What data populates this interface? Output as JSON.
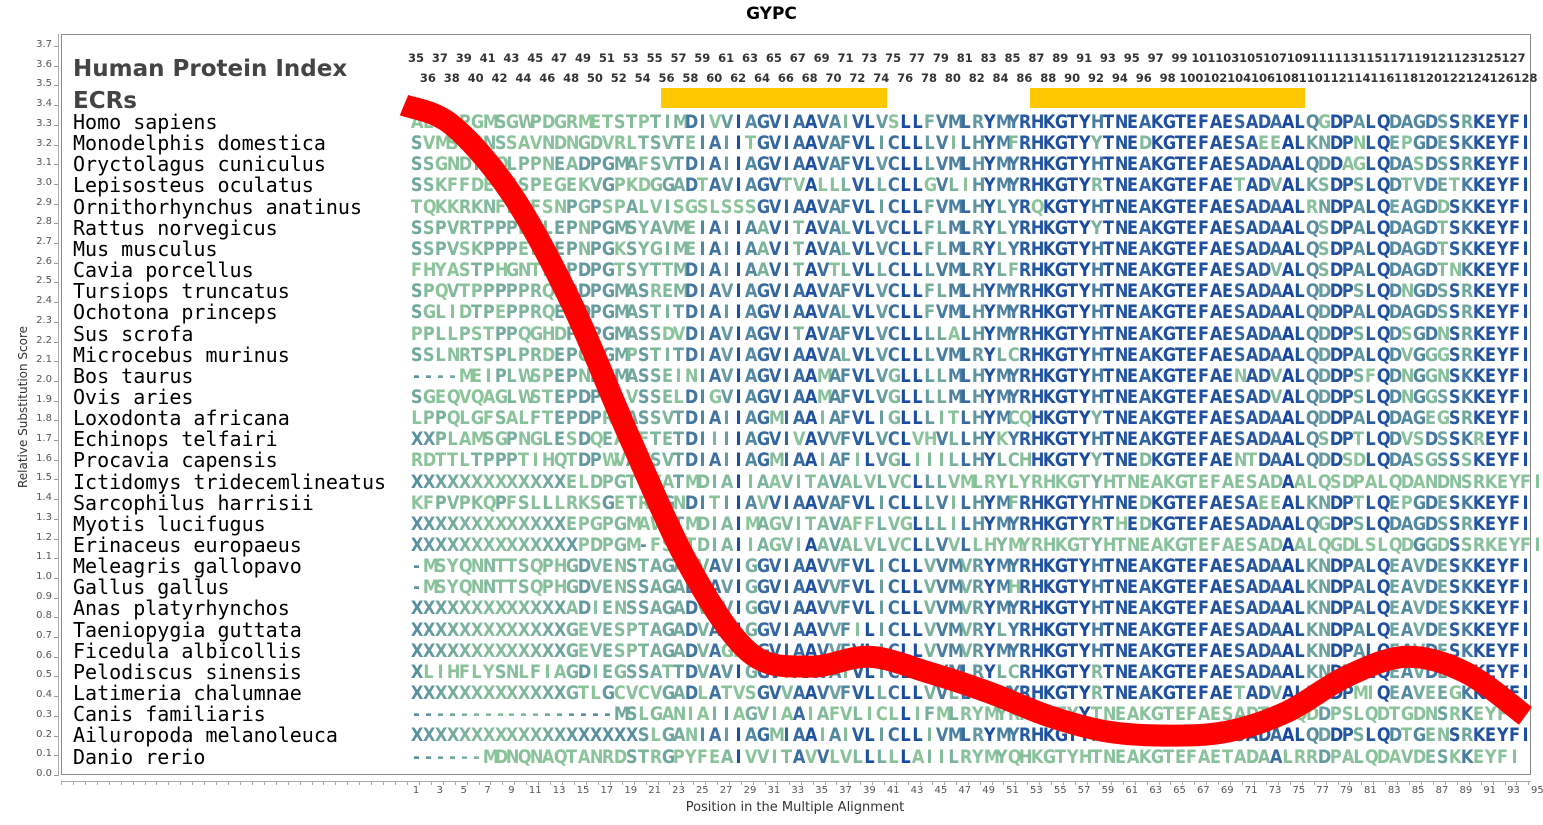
{
  "chart_data": {
    "type": "line",
    "title": "GYPC",
    "xlabel": "Position in the Multiple Alignment",
    "ylabel": "Relative Substitution Score",
    "ylim": [
      0.0,
      3.7
    ],
    "xlim": [
      1,
      95
    ],
    "grid": false,
    "y_ticks": [
      "0.0",
      "0.1",
      "0.2",
      "0.3",
      "0.4",
      "0.5",
      "0.6",
      "0.7",
      "0.8",
      "0.9",
      "1.0",
      "1.1",
      "1.2",
      "1.3",
      "1.4",
      "1.5",
      "1.6",
      "1.7",
      "1.8",
      "1.9",
      "2.0",
      "2.1",
      "2.2",
      "2.3",
      "2.4",
      "2.5",
      "2.6",
      "2.7",
      "2.8",
      "2.9",
      "3.0",
      "3.1",
      "3.2",
      "3.3",
      "3.4",
      "3.5",
      "3.6",
      "3.7"
    ],
    "x_ticks": [
      "1",
      "3",
      "5",
      "7",
      "9",
      "11",
      "13",
      "15",
      "17",
      "19",
      "21",
      "23",
      "25",
      "27",
      "29",
      "31",
      "33",
      "35",
      "37",
      "39",
      "41",
      "43",
      "45",
      "47",
      "49",
      "51",
      "53",
      "55",
      "57",
      "59",
      "61",
      "63",
      "65",
      "67",
      "69",
      "71",
      "73",
      "75",
      "77",
      "79",
      "81",
      "83",
      "85",
      "87",
      "89",
      "91",
      "93",
      "95"
    ],
    "series": [
      {
        "name": "Relative Substitution Score",
        "color": "#ff0000",
        "x": [
          1,
          5,
          10,
          15,
          20,
          25,
          30,
          35,
          40,
          45,
          50,
          55,
          60,
          65,
          70,
          75,
          80,
          85,
          90,
          95
        ],
        "y": [
          3.4,
          3.3,
          2.95,
          2.4,
          1.7,
          1.05,
          0.62,
          0.55,
          0.6,
          0.52,
          0.42,
          0.3,
          0.22,
          0.2,
          0.22,
          0.32,
          0.5,
          0.6,
          0.52,
          0.3
        ]
      }
    ]
  },
  "header": {
    "hpi_label": "Human Protein Index",
    "ecr_label": "ECRs",
    "hpi_top_row": [
      "35",
      "37",
      "39",
      "41",
      "43",
      "45",
      "47",
      "49",
      "51",
      "53",
      "55",
      "57",
      "59",
      "61",
      "63",
      "65",
      "67",
      "69",
      "71",
      "73",
      "75",
      "77",
      "79",
      "81",
      "83",
      "85",
      "87",
      "89",
      "91",
      "93",
      "95",
      "97",
      "99",
      "101",
      "103",
      "105",
      "107",
      "109",
      "111",
      "113",
      "115",
      "117",
      "119",
      "121",
      "123",
      "125",
      "127"
    ],
    "hpi_bottom_row": [
      "36",
      "38",
      "40",
      "42",
      "44",
      "46",
      "48",
      "50",
      "52",
      "54",
      "56",
      "58",
      "60",
      "62",
      "64",
      "66",
      "68",
      "70",
      "72",
      "74",
      "76",
      "78",
      "80",
      "82",
      "84",
      "86",
      "88",
      "90",
      "92",
      "94",
      "96",
      "98",
      "100",
      "102",
      "104",
      "106",
      "108",
      "110",
      "112",
      "114",
      "116",
      "118",
      "120",
      "122",
      "124",
      "126",
      "128"
    ],
    "ecrs": [
      {
        "start_position": 22,
        "end_position": 40,
        "color": "#ffc800"
      },
      {
        "start_position": 53,
        "end_position": 75,
        "color": "#ffc800"
      }
    ]
  },
  "alignment": {
    "colors": {
      "low_conservation": "#8fc89a",
      "mid_conservation": "#5a8fa0",
      "high_conservation": "#0a3aa0"
    },
    "rows": [
      {
        "species": "Homo sapiens",
        "sequence": "AEPDPGMSGWPDGRMETSTPTIMDIVVIAGVIAAVAIVLVSLLFVMLRYMYRHKGTYHTNEAKGTEFAESADAALQGDPALQDAGDSSRKEYFI"
      },
      {
        "species": "Monodelphis domestica",
        "sequence": "SVMSNPNSSAVNDNGDVRLTSVTEIAIITGVIAAVAFVLICLLLVILHYMFRHKGTYYTNEDKGTEFAESAEEALKNDPNLQEPGDESKKEYFI"
      },
      {
        "species": "Oryctolagus cuniculus",
        "sequence": "SSGNDTSQLPPNEADPGMAFSVTDIAIIAGVIAAVAFVLVCLLLVMLHYMYRHKGTYHTNEAKGTEFAESADAALQDDAGLQDASDSSRKEYFI"
      },
      {
        "species": "Lepisosteus oculatus",
        "sequence": "SSKFFDEKFSPEGEKVGPKDGGADTAVIAGVTVALLLVLLCLLGVLIHYMYRHKGTYRTNEAKGTEFAETADVALKSDPSLQDTVDETKKEYFI"
      },
      {
        "species": "Ornithorhynchus anatinus",
        "sequence": "TQKKRKNFLPFSNPGPSPALVISGSLSSSGVIAAVAFVLICLLFVMLHYLYRQKGTYHTNEAKGTEFAESADAALRNDPALQEAGDDSKKEYFI"
      },
      {
        "species": "Rattus norvegicus",
        "sequence": "SSPVRTPPPERLEPNPGMSYAVMEIAIIAAVITAVALVLVCLLFLMLRYLYRHKGTYYTNEAKGTEFAESADAALQSDPALQDAGDTSKKEYFI"
      },
      {
        "species": "Mus musculus",
        "sequence": "SSPVSKPPPELLEPNPGKSYGIMEIAIIAAVITAVALVLVCLLFLMLRYLYRHKGTYHTNEAKGTEFAESADAALQSDPALQDAGDTSKKEYFI"
      },
      {
        "species": "Cavia porcellus",
        "sequence": "FHYASTPHGNTLAPDPGTSYTTMDIAIIAAVITAVTLVLLCLLLVMLRYLFRHKGTYHTNEAKGTEFAESADVALQSDPALQDAGDTNKKEYFI"
      },
      {
        "species": "Tursiops truncatus",
        "sequence": "SPQVTPPPPPRQEPDPGMASREMDIAVIAGVIAAVAFVLVCLLFLMLHYMYRHKGTYHTNEAKGTEFAESADAALQDDPSLQDNGDSSRKEYFI"
      },
      {
        "species": "Ochotona princeps",
        "sequence": "SGLIDTPEPPRQEADPGMASTITDIAIIAGVIAAVALVLVCLLFVMLHYMYRHKGTYHTNEAKGTEFAESADAALQDDPALQDAGDSSRKEYFI"
      },
      {
        "species": "Sus scrofa",
        "sequence": "PPLLPSTPPQGHDPDPGMASSDVDIAVIAGVITAVAFVLVCLLLLALHYMYRHKGTYHTNEAKGTEFAESADAALQDDPSLQDSGDNSRKEYFI"
      },
      {
        "species": "Microcebus murinus",
        "sequence": "SSLNRTSPLPRDEPGRGMPSTITDIAVIAGVIAAVALVLVCLLLVMLRYLCRHKGTYHTNEAKGTEFAESADAALQDDPALQDVGGGSRKEYFI"
      },
      {
        "species": "Bos taurus",
        "sequence": "----MEIPLWSPEPNPGMASSEINIAVIAGVIAAMAFVLVGLLLLMLHYMYRHKGTYHTNEAKGTEFAENADVALQDDPSFQDNGGNSKKEYFI"
      },
      {
        "species": "Ovis aries",
        "sequence": "SGEQVQAGLWSTEPDPGIVSSELDIGVIAGVIAAMAFVLVGLLLLMLHYMYRHKGTYHTNEAKGTEFAESADVALQDDPSLQDNGGSSKKEYFI"
      },
      {
        "species": "Loxodonta africana",
        "sequence": "LPPQLGFSALFTEPDPRMASSVTDIAIIAGMIAAIAFVLIGLLLITLHYMCQHKGTYYTNEAKGTEFAESADAALQDDPALQDAGEGSRKEYFI"
      },
      {
        "species": "Echinops telfairi",
        "sequence": "XXPLAMSGPNGLESDQEAAFTETDIIIIAGVIVAVVFVLVCLVHVLLHYKYRHKGTYHTNEAKGTEFAESADAALQSDPTLQDVSDSSKREYFI"
      },
      {
        "species": "Procavia capensis",
        "sequence": "RDTTLTPPPTIHQTDPWVAYSVTDIAIIAGMIAAIAFILVGLIIILLHYLCHHKGTYYTNEDKGTEFAENTDAALQDDSDLQDASGSSSKEYFI"
      },
      {
        "species": "Ictidomys tridecemlineatus",
        "sequence": "XXXXXXXXXXXXXELDPGTSYATMDIAIIAAVITAVALVLVCLLLVMLRYLYRHKGTYHTNEAKGTEFAESADAALQSDPALQDANDNSRKEYFI"
      },
      {
        "species": "Sarcophilus harrisii",
        "sequence": "KFPVPKQPFSLLLRKSGETRPGNDITIIAVVIAAVAFVLICLLLVILHYMFRHKGTYHTNEDKGTEFAESAEEALKNDPTLQEPGDESKKEYFI"
      },
      {
        "species": "Myotis lucifugus",
        "sequence": "XXXXXXXXXXXXXEPGPGMAWTTMDIAIMAGVITAVAFFLVGLLLILHYMYRHKGTYRTHEDKGTEFAESADAALQGDPSLQDAGDSSRKEYFI"
      },
      {
        "species": "Erinaceus europaeus",
        "sequence": "XXXXXXXXXXXXXXPDPGM-FSETDIAIIAGVIAAVALVLVCLLVVLLHYMYRHKGTYHTNEAKGTEFAESADAALQGDLSLQDGGDSSRKEYFI"
      },
      {
        "species": "Meleagris gallopavo",
        "sequence": "-MSYQNNTTSQPHGDVENSTAGADVAVIGGVIAAVVFVLICLLVVMVRYMYRHKGTYHTNEAKGTEFAESADAALKNDPALQEAVDESKKEYFI"
      },
      {
        "species": "Gallus gallus",
        "sequence": "-MSYQNNTTSQPHGDVENSSAGADVAVIGGVIAAVVFVLICLLVVMVRYMHRHKGTYHTNEAKGTEFAESADAALKNDPALQEAVDESKKEYFI"
      },
      {
        "species": "Anas platyrhynchos",
        "sequence": "XXXXXXXXXXXXXADIENSSAGADVAVIGGVIAAVVFVLICLLVVMVRYMYRHKGTYHTNEAKGTEFAESADAALKNDPALQEAVDESKKEYFI"
      },
      {
        "species": "Taeniopygia guttata",
        "sequence": "XXXXXXXXXXXXXGEVESPTAGADVAVIGGVIAAVVFILICLLVVMVRYLYRHKGTYHTNEAKGTEFAESADAALKNDPALQEAVDESKKEYFI"
      },
      {
        "species": "Ficedula albicollis",
        "sequence": "XXXXXXXXXXXXXGEVESPTAGADVAGFGGVIAAVVFVLICLLVVMVRYMYRHKGTYHTNEAKGTEFAESADAALKNDPALQEAVDESKKEYFI"
      },
      {
        "species": "Pelodiscus sinensis",
        "sequence": "XLIHFLYSNLFIAGDIEGSSATTDVAVIGGVTAAVAIVLICLLIVMLRYLCRHKGTYRTNEAKGTEFAESADAALKNDPALQEAVDESKKEYFI"
      },
      {
        "species": "Latimeria chalumnae",
        "sequence": "XXXXXXXXXXXXXGTLGCVCVGADLATVSGVVAAVVFVLLCLLVVLLRYMYRHKGTYRTNEAKGTEFAETADVALKNDPMIQEAVEEGKKEYFI"
      },
      {
        "species": "Canis familiaris",
        "sequence": "-----------------MSLGANIAIIAGVIAAIAFVLICLLIFMLRYMYRHKGTYYTNEAKGTEFAESADTALQDDPSLQDTGDNSRKEYFI"
      },
      {
        "species": "Ailuropoda melanoleuca",
        "sequence": "XXXXXXXXXXXXXXXXXXXSLGANIAIIAGMIAAIAIVLICLLIVMLRYMYRHKGTYHTNEAKGTEFAESADAALQDDPSLQDTGENSRKEYFI"
      },
      {
        "species": "Danio rerio",
        "sequence": "------MDNQNAQTANRDSTRGPYFEAIVVITAVVLVLLLLLAIILRYMYQHKGTYHTNEAKGTEFAETADAALRRDPALQDAVDESKKEYFI"
      }
    ]
  }
}
